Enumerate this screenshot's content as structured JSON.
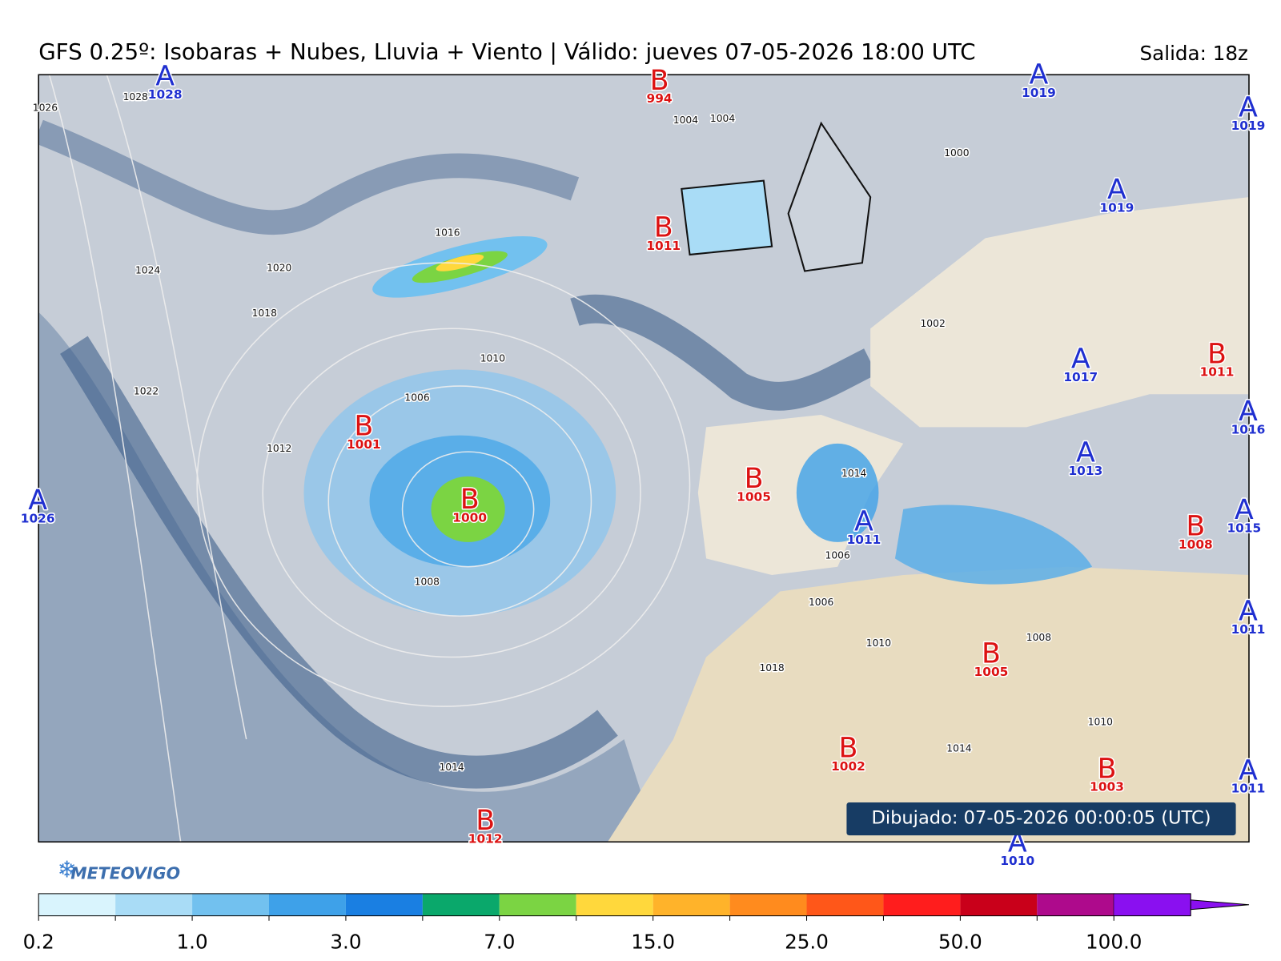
{
  "header": {
    "title": "GFS 0.25º: Isobaras + Nubes, Lluvia + Viento | Válido: jueves 07-05-2026 18:00 UTC",
    "run": "Salida: 18z"
  },
  "map": {
    "centers": [
      {
        "letter": "A",
        "value": "1028"
      },
      {
        "letter": "B",
        "value": "994"
      },
      {
        "letter": "A",
        "value": "1019"
      },
      {
        "letter": "A",
        "value": "1019"
      },
      {
        "letter": "A",
        "value": "1019"
      },
      {
        "letter": "B",
        "value": "1011"
      },
      {
        "letter": "A",
        "value": "1026"
      },
      {
        "letter": "B",
        "value": "1001"
      },
      {
        "letter": "B",
        "value": "1000"
      },
      {
        "letter": "B",
        "value": "1005"
      },
      {
        "letter": "A",
        "value": "1011"
      },
      {
        "letter": "A",
        "value": "1017"
      },
      {
        "letter": "B",
        "value": "1011"
      },
      {
        "letter": "A",
        "value": "1016"
      },
      {
        "letter": "A",
        "value": "1013"
      },
      {
        "letter": "A",
        "value": "1015"
      },
      {
        "letter": "B",
        "value": "1008"
      },
      {
        "letter": "A",
        "value": "1011"
      },
      {
        "letter": "B",
        "value": "1005"
      },
      {
        "letter": "B",
        "value": "1002"
      },
      {
        "letter": "A",
        "value": "1011"
      },
      {
        "letter": "B",
        "value": "1003"
      },
      {
        "letter": "B",
        "value": "1012"
      },
      {
        "letter": "A",
        "value": "1010"
      }
    ],
    "isobar_labels": [
      "1026",
      "1028",
      "1024",
      "1020",
      "1018",
      "1016",
      "1022",
      "1012",
      "1010",
      "1006",
      "1008",
      "1004",
      "1002",
      "1000",
      "1014",
      "1018",
      "1010",
      "1014",
      "1010",
      "1004",
      "1006",
      "1008",
      "1006",
      "1014"
    ],
    "drawn": "Dibujado: 07-05-2026 00:00:05 (UTC)",
    "logo": "METEOVIGO"
  },
  "colorbar": {
    "colors": [
      "#d9f4fd",
      "#a9dcf6",
      "#72c1ef",
      "#3ea1e9",
      "#1a7fe2",
      "#0aa86b",
      "#7bd443",
      "#ffd83c",
      "#ffb32a",
      "#ff8b1e",
      "#ff5719",
      "#ff1d1d",
      "#c9001a",
      "#ae0a8c",
      "#8a10f0"
    ],
    "labels": [
      "0.2",
      "1.0",
      "3.0",
      "7.0",
      "15.0",
      "25.0",
      "50.0",
      "100.0"
    ]
  }
}
